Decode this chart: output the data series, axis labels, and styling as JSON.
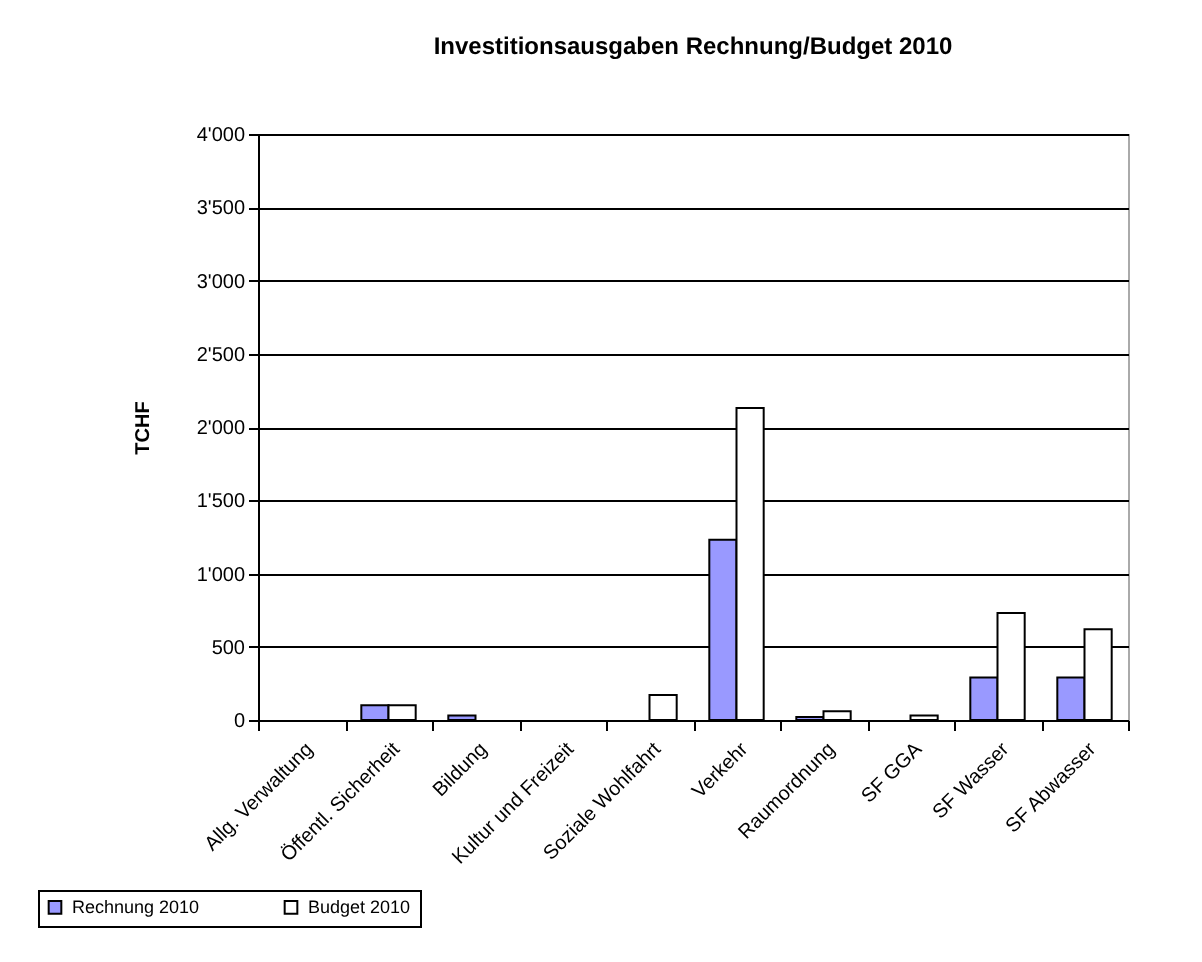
{
  "chart_data": {
    "type": "bar",
    "title": "Investitionsausgaben  Rechnung/Budget 2010",
    "ylabel": "TCHF",
    "categories": [
      "Allg. Verwaltung",
      "Öffentl. Sicherheit",
      "Bildung",
      "Kultur und Freizeit",
      "Soziale Wohlfahrt",
      "Verkehr",
      "Raumordnung",
      "SF GGA",
      "SF Wasser",
      "SF Abwasser"
    ],
    "series": [
      {
        "name": "Rechnung 2010",
        "color": "#9999ff",
        "values": [
          0,
          100,
          30,
          0,
          0,
          1230,
          20,
          0,
          290,
          290
        ]
      },
      {
        "name": "Budget 2010",
        "color": "#ffffff",
        "values": [
          0,
          100,
          0,
          0,
          170,
          2130,
          60,
          30,
          730,
          620
        ]
      }
    ],
    "ylim": [
      0,
      4000
    ],
    "yticks": [
      0,
      500,
      {
        "value": 1000,
        "label": "1'000"
      },
      {
        "value": 1500,
        "label": "1'500"
      },
      {
        "value": 2000,
        "label": "2'000"
      },
      {
        "value": 2500,
        "label": "2'500"
      },
      {
        "value": 3000,
        "label": "3'000"
      },
      {
        "value": 3500,
        "label": "3'500"
      },
      {
        "value": 4000,
        "label": "4'000"
      }
    ],
    "grid": "y",
    "legend": "bottom left"
  }
}
